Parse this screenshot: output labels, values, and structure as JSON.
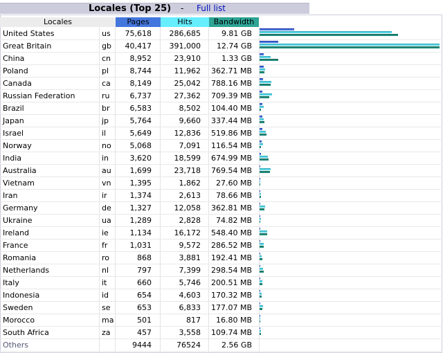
{
  "title": "Locales (Top 25)",
  "separator": "-",
  "full_list_link": "Full list",
  "headers": {
    "locales": "Locales",
    "pages": "Pages",
    "hits": "Hits",
    "bandwidth": "Bandwidth"
  },
  "colors": {
    "pages": "#4477dd",
    "hits": "#66eeff",
    "bandwidth": "#2ea495",
    "title_bar": "#ccccdd"
  },
  "rows": [
    {
      "name": "United States",
      "code": "us",
      "pages": "75,618",
      "hits": "286,685",
      "bandwidth": "9.81 GB"
    },
    {
      "name": "Great Britain",
      "code": "gb",
      "pages": "40,417",
      "hits": "391,000",
      "bandwidth": "12.74 GB"
    },
    {
      "name": "China",
      "code": "cn",
      "pages": "8,952",
      "hits": "23,910",
      "bandwidth": "1.33 GB"
    },
    {
      "name": "Poland",
      "code": "pl",
      "pages": "8,744",
      "hits": "11,962",
      "bandwidth": "362.71 MB"
    },
    {
      "name": "Canada",
      "code": "ca",
      "pages": "8,149",
      "hits": "25,042",
      "bandwidth": "788.16 MB"
    },
    {
      "name": "Russian Federation",
      "code": "ru",
      "pages": "6,737",
      "hits": "27,362",
      "bandwidth": "709.39 MB"
    },
    {
      "name": "Brazil",
      "code": "br",
      "pages": "6,583",
      "hits": "8,502",
      "bandwidth": "104.40 MB"
    },
    {
      "name": "Japan",
      "code": "jp",
      "pages": "5,764",
      "hits": "9,660",
      "bandwidth": "337.44 MB"
    },
    {
      "name": "Israel",
      "code": "il",
      "pages": "5,649",
      "hits": "12,836",
      "bandwidth": "519.86 MB"
    },
    {
      "name": "Norway",
      "code": "no",
      "pages": "5,068",
      "hits": "7,091",
      "bandwidth": "116.54 MB"
    },
    {
      "name": "India",
      "code": "in",
      "pages": "3,620",
      "hits": "18,599",
      "bandwidth": "674.99 MB"
    },
    {
      "name": "Australia",
      "code": "au",
      "pages": "1,699",
      "hits": "23,718",
      "bandwidth": "769.54 MB"
    },
    {
      "name": "Vietnam",
      "code": "vn",
      "pages": "1,395",
      "hits": "1,862",
      "bandwidth": "27.60 MB"
    },
    {
      "name": "Iran",
      "code": "ir",
      "pages": "1,374",
      "hits": "2,613",
      "bandwidth": "78.66 MB"
    },
    {
      "name": "Germany",
      "code": "de",
      "pages": "1,327",
      "hits": "12,058",
      "bandwidth": "362.81 MB"
    },
    {
      "name": "Ukraine",
      "code": "ua",
      "pages": "1,289",
      "hits": "2,828",
      "bandwidth": "74.82 MB"
    },
    {
      "name": "Ireland",
      "code": "ie",
      "pages": "1,134",
      "hits": "16,172",
      "bandwidth": "548.40 MB"
    },
    {
      "name": "France",
      "code": "fr",
      "pages": "1,031",
      "hits": "9,572",
      "bandwidth": "286.52 MB"
    },
    {
      "name": "Romania",
      "code": "ro",
      "pages": "868",
      "hits": "3,881",
      "bandwidth": "192.41 MB"
    },
    {
      "name": "Netherlands",
      "code": "nl",
      "pages": "797",
      "hits": "7,399",
      "bandwidth": "298.54 MB"
    },
    {
      "name": "Italy",
      "code": "it",
      "pages": "660",
      "hits": "5,746",
      "bandwidth": "200.51 MB"
    },
    {
      "name": "Indonesia",
      "code": "id",
      "pages": "654",
      "hits": "4,603",
      "bandwidth": "170.32 MB"
    },
    {
      "name": "Sweden",
      "code": "se",
      "pages": "653",
      "hits": "6,833",
      "bandwidth": "177.07 MB"
    },
    {
      "name": "Morocco",
      "code": "ma",
      "pages": "501",
      "hits": "817",
      "bandwidth": "16.80 MB"
    },
    {
      "name": "South Africa",
      "code": "za",
      "pages": "457",
      "hits": "3,558",
      "bandwidth": "109.74 MB"
    }
  ],
  "others": {
    "name": "Others",
    "code": "",
    "pages": "9444",
    "hits": "76524",
    "bandwidth": "2.56 GB"
  }
}
